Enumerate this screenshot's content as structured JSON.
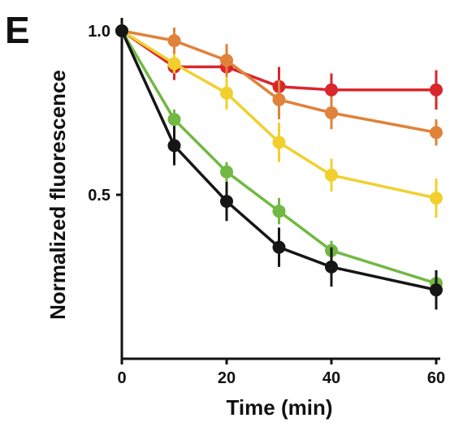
{
  "chart_data": {
    "type": "line",
    "panel_label": "E",
    "xlabel": "Time (min)",
    "ylabel": "Normalized fluorescence",
    "xlim": [
      0,
      62
    ],
    "ylim": [
      0,
      1.03
    ],
    "xticks": [
      0,
      20,
      40,
      60
    ],
    "yticks": [
      0.5,
      1.0
    ],
    "ytick_labels": [
      "0.5",
      "1.0"
    ],
    "x": [
      0,
      10,
      20,
      30,
      40,
      60
    ],
    "grid": false,
    "series": [
      {
        "color": "#d9262c",
        "values": [
          1.0,
          0.89,
          0.89,
          0.83,
          0.82,
          0.82
        ],
        "errors": [
          0.02,
          0.04,
          0.04,
          0.06,
          0.05,
          0.06
        ]
      },
      {
        "color": "#e0823a",
        "values": [
          1.0,
          0.97,
          0.91,
          0.79,
          0.75,
          0.69
        ],
        "errors": [
          0.02,
          0.04,
          0.05,
          0.06,
          0.05,
          0.04
        ]
      },
      {
        "color": "#f1d02e",
        "values": [
          1.0,
          0.9,
          0.81,
          0.66,
          0.56,
          0.49
        ],
        "errors": [
          0.02,
          0.03,
          0.05,
          0.06,
          0.05,
          0.06
        ]
      },
      {
        "color": "#72b843",
        "values": [
          1.0,
          0.73,
          0.57,
          0.45,
          0.33,
          0.23
        ],
        "errors": [
          0.02,
          0.03,
          0.03,
          0.04,
          0.03,
          0.04
        ]
      },
      {
        "color": "#161616",
        "values": [
          1.0,
          0.65,
          0.48,
          0.34,
          0.28,
          0.21
        ],
        "errors": [
          0.02,
          0.06,
          0.06,
          0.06,
          0.06,
          0.06
        ]
      }
    ]
  }
}
